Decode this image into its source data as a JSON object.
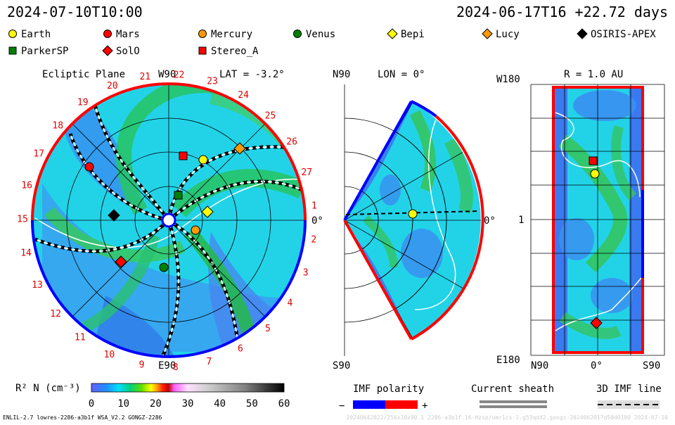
{
  "header": {
    "datetime": "2024-07-10T10:00",
    "reference": "2024-06-17T16 +22.72 days"
  },
  "legend": [
    {
      "name": "Earth",
      "marker": "circle",
      "color": "#ffff00"
    },
    {
      "name": "Mars",
      "marker": "circle",
      "color": "#ff0000"
    },
    {
      "name": "Mercury",
      "marker": "circle",
      "color": "#ff9900"
    },
    {
      "name": "Venus",
      "marker": "circle",
      "color": "#008000"
    },
    {
      "name": "Bepi",
      "marker": "diamond",
      "color": "#ffff00"
    },
    {
      "name": "Lucy",
      "marker": "diamond",
      "color": "#ff9900"
    },
    {
      "name": "OSIRIS-APEX",
      "marker": "diamond",
      "color": "#000000"
    },
    {
      "name": "ParkerSP",
      "marker": "square",
      "color": "#008000"
    },
    {
      "name": "SolO",
      "marker": "diamond",
      "color": "#ff0000"
    },
    {
      "name": "Stereo_A",
      "marker": "square",
      "color": "#ff0000"
    }
  ],
  "ecliptic": {
    "title": "Ecliptic Plane",
    "lat": "LAT = -3.2°",
    "w90": "W90",
    "e90": "E90",
    "zero": "0°",
    "hours": [
      "1",
      "2",
      "3",
      "4",
      "5",
      "6",
      "7",
      "8",
      "9",
      "10",
      "11",
      "12",
      "13",
      "14",
      "15",
      "16",
      "17",
      "18",
      "19",
      "20",
      "21",
      "22",
      "23",
      "24",
      "25",
      "26",
      "27"
    ]
  },
  "meridional": {
    "n90": "N90",
    "s90": "S90",
    "lon": "LON = 0°",
    "zero": "0°"
  },
  "rpanel": {
    "title": "R = 1.0 AU",
    "w180": "W180",
    "e180": "E180",
    "one": "1",
    "n90": "N90",
    "s90": "S90",
    "zero": "0°"
  },
  "colorbar": {
    "label": "R² N (cm⁻³)",
    "ticks": [
      "0",
      "10",
      "20",
      "30",
      "40",
      "50",
      "60"
    ]
  },
  "imf": {
    "title": "IMF polarity",
    "minus": "−",
    "plus": "+"
  },
  "sheath": {
    "title": "Current sheath"
  },
  "line3d": {
    "title": "3D IMF line"
  },
  "footer": {
    "left": "ENLIL-2.7 lowres-2286-a3b1f WSA_V2.2 GONGZ-2286",
    "right": "20240642022/256x30x90.1 2286-a3b1f.16-Hzsp/umr1cs-1.g53qdd2.gongz-2024062017d50d0100 2024-07-10"
  },
  "colors": {
    "positive": "#ff0000",
    "negative": "#0000ff",
    "background_fill": "#22d3e8"
  }
}
